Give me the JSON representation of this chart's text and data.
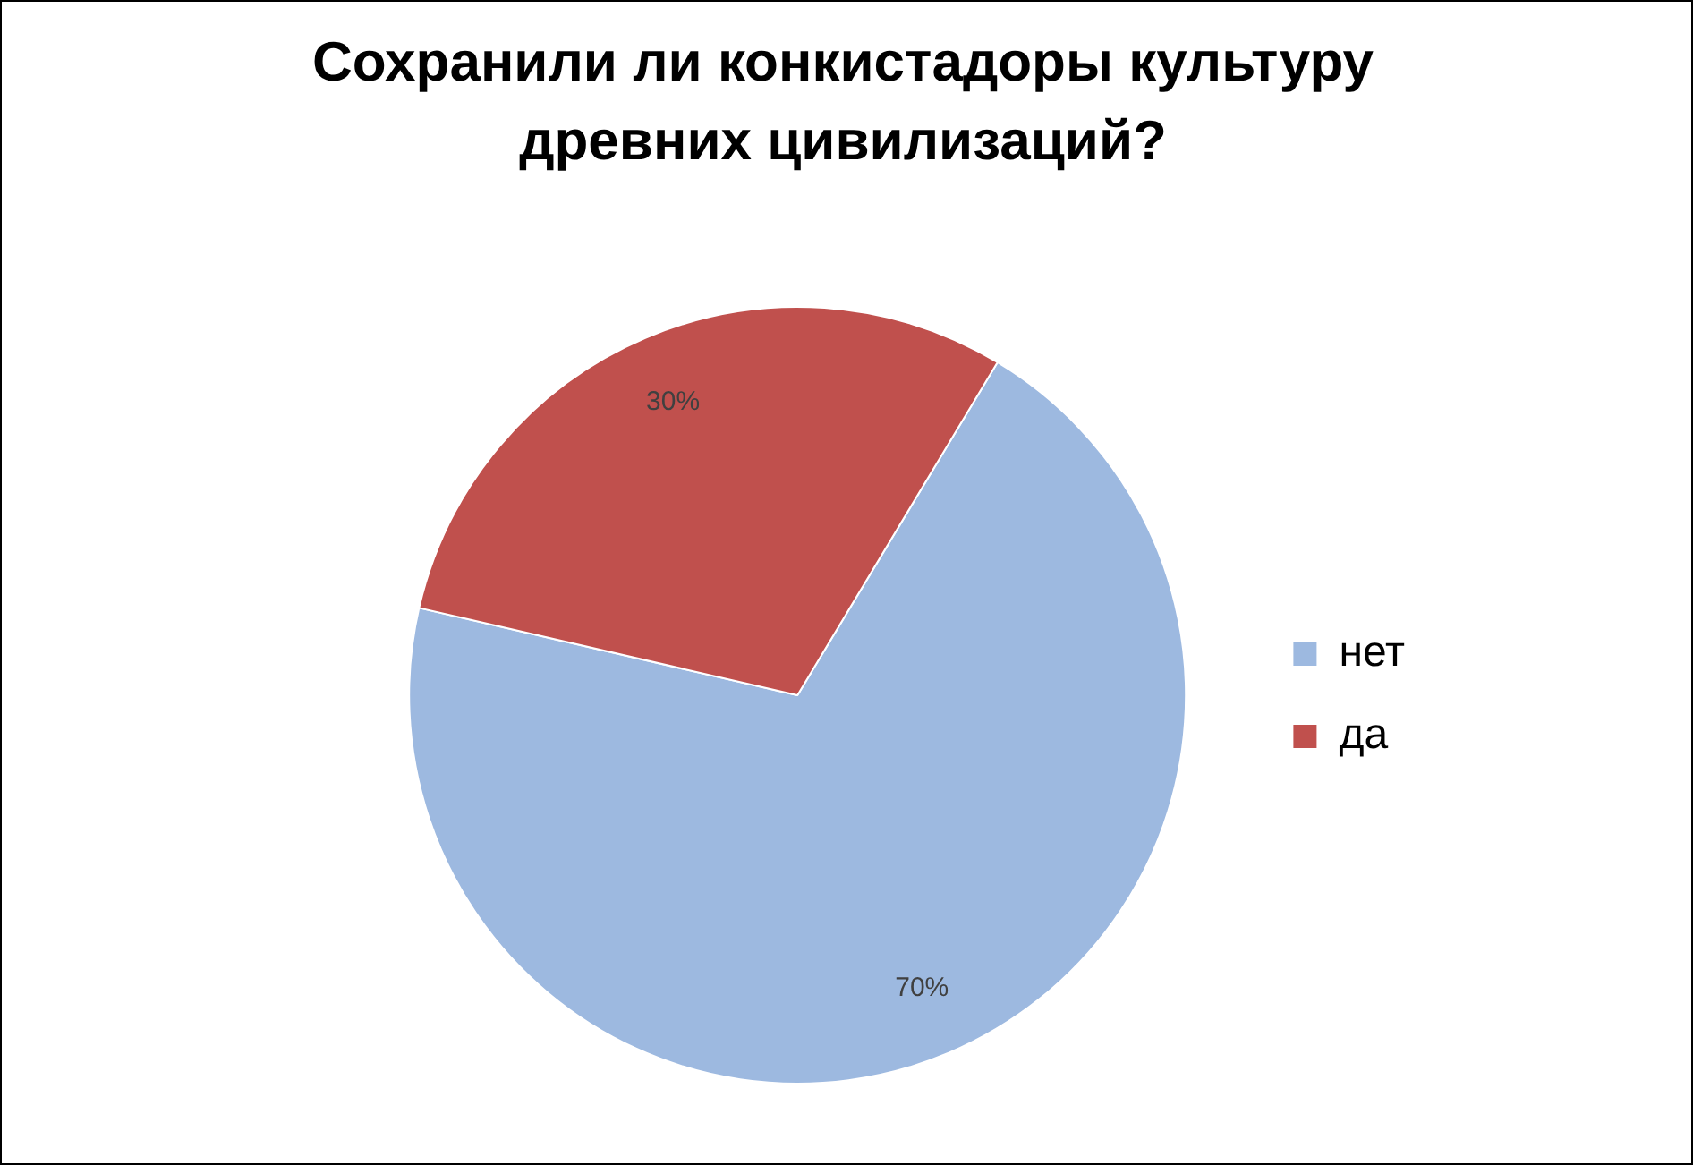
{
  "chart_data": {
    "type": "pie",
    "title": "Сохранили ли конкистадоры культуру древних цивилизаций?",
    "categories": [
      "нет",
      "да"
    ],
    "values": [
      70,
      30
    ],
    "colors": [
      "#9db9e0",
      "#c0504d"
    ],
    "value_labels": [
      "70%",
      "30%"
    ],
    "legend": "right"
  }
}
